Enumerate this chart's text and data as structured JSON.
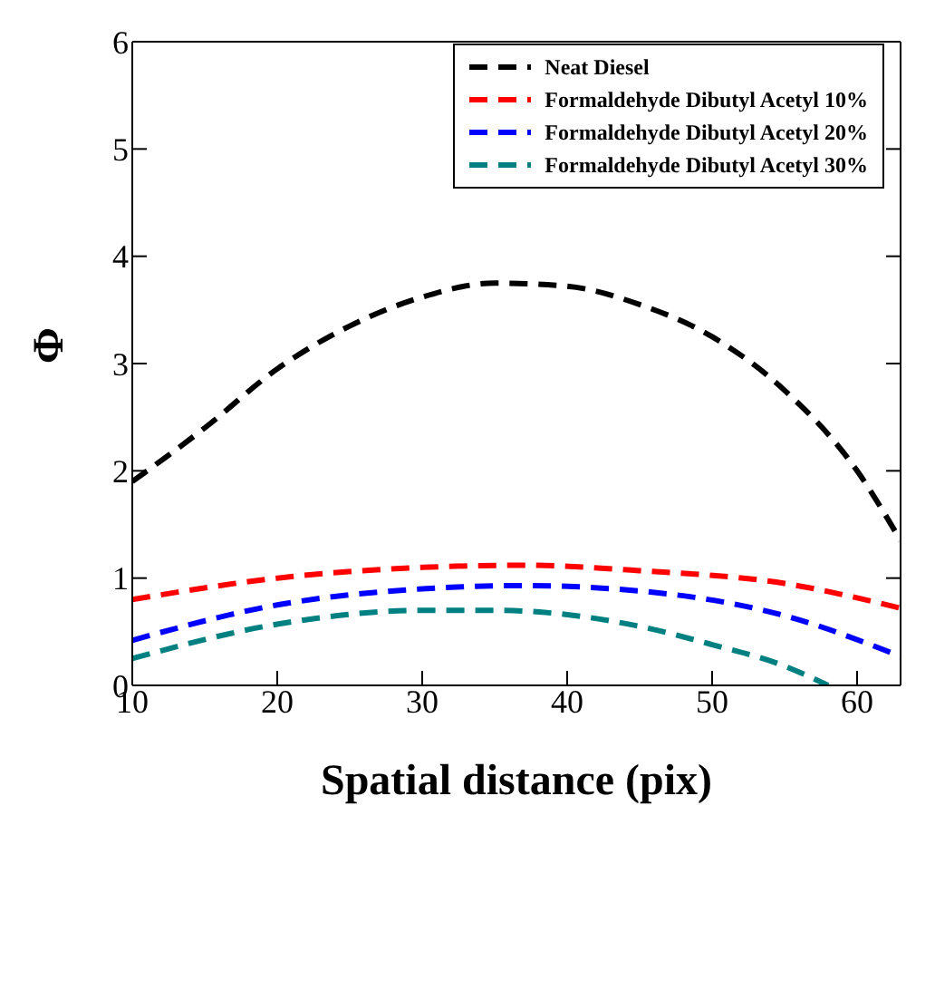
{
  "chart_data": {
    "type": "line",
    "xlabel": "Spatial distance (pix)",
    "ylabel": "Φ",
    "xlim": [
      10,
      63
    ],
    "xticks": [
      10,
      20,
      30,
      40,
      50,
      60
    ],
    "ylim": [
      0,
      6
    ],
    "yticks": [
      0,
      1,
      2,
      3,
      4,
      5,
      6
    ],
    "grid": false,
    "legend": "top right",
    "marker": "none",
    "line_style": "dashed",
    "series": [
      {
        "name": "Neat Diesel",
        "color": "#000000",
        "x": [
          10,
          15,
          20,
          25,
          30,
          35,
          40,
          45,
          50,
          55,
          60,
          63
        ],
        "values": [
          1.9,
          2.4,
          2.95,
          3.35,
          3.62,
          3.75,
          3.72,
          3.55,
          3.25,
          2.75,
          2.0,
          1.35
        ]
      },
      {
        "name": "Formaldehyde Dibutyl Acetyl 10%",
        "color": "#ff0000",
        "x": [
          10,
          20,
          30,
          37,
          45,
          55,
          63
        ],
        "values": [
          0.8,
          1.0,
          1.1,
          1.12,
          1.07,
          0.95,
          0.72
        ]
      },
      {
        "name": "Formaldehyde Dibutyl Acetyl 20%",
        "color": "#0000ff",
        "x": [
          10,
          20,
          30,
          37,
          45,
          55,
          63
        ],
        "values": [
          0.42,
          0.75,
          0.9,
          0.93,
          0.88,
          0.65,
          0.27
        ]
      },
      {
        "name": "Formaldehyde Dibutyl Acetyl 30%",
        "color": "#008080",
        "x": [
          10,
          20,
          30,
          35,
          45,
          50,
          55,
          58
        ],
        "values": [
          0.25,
          0.57,
          0.7,
          0.7,
          0.55,
          0.38,
          0.18,
          0.0
        ]
      }
    ]
  }
}
